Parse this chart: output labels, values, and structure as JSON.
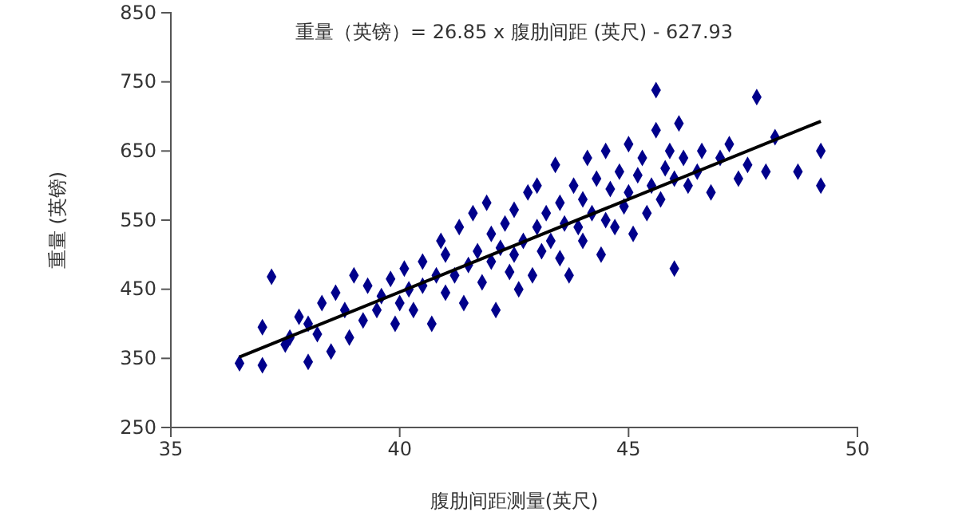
{
  "chart_data": {
    "type": "scatter",
    "title": "重量（英镑）= 26.85 x 腹肋间距 (英尺) - 627.93",
    "xlabel": "腹肋间距测量(英尺)",
    "ylabel": "重量 (英镑)",
    "xlim": [
      35,
      50
    ],
    "xticks": [
      35,
      40,
      45,
      50
    ],
    "ylim": [
      250,
      850
    ],
    "yticks": [
      250,
      350,
      450,
      550,
      650,
      750,
      850
    ],
    "grid": false,
    "series": [
      {
        "color": "#00008b",
        "marker": "diamond",
        "x": [
          36.5,
          37.0,
          37.0,
          37.2,
          37.5,
          37.6,
          37.8,
          38.0,
          38.0,
          38.2,
          38.3,
          38.5,
          38.6,
          38.8,
          38.9,
          39.0,
          39.2,
          39.3,
          39.5,
          39.6,
          39.8,
          39.9,
          40.0,
          40.1,
          40.2,
          40.3,
          40.5,
          40.5,
          40.7,
          40.8,
          40.9,
          41.0,
          41.0,
          41.2,
          41.3,
          41.4,
          41.5,
          41.6,
          41.7,
          41.8,
          41.9,
          42.0,
          42.0,
          42.1,
          42.2,
          42.3,
          42.4,
          42.5,
          42.5,
          42.6,
          42.7,
          42.8,
          42.9,
          43.0,
          43.0,
          43.1,
          43.2,
          43.3,
          43.4,
          43.5,
          43.5,
          43.6,
          43.7,
          43.8,
          43.9,
          44.0,
          44.0,
          44.1,
          44.2,
          44.3,
          44.4,
          44.5,
          44.5,
          44.6,
          44.7,
          44.8,
          44.9,
          45.0,
          45.0,
          45.1,
          45.2,
          45.3,
          45.4,
          45.5,
          45.6,
          45.6,
          45.7,
          45.8,
          45.9,
          46.0,
          46.0,
          46.1,
          46.2,
          46.3,
          46.5,
          46.6,
          46.8,
          47.0,
          47.2,
          47.4,
          47.6,
          47.8,
          48.0,
          48.2,
          48.7,
          49.2,
          49.2
        ],
        "values": [
          343,
          340,
          395,
          468,
          370,
          380,
          410,
          345,
          400,
          385,
          430,
          360,
          445,
          420,
          380,
          470,
          405,
          455,
          420,
          440,
          465,
          400,
          430,
          480,
          450,
          420,
          455,
          490,
          400,
          470,
          520,
          445,
          500,
          470,
          540,
          430,
          485,
          560,
          505,
          460,
          575,
          490,
          530,
          420,
          510,
          545,
          475,
          565,
          500,
          450,
          520,
          590,
          470,
          540,
          600,
          505,
          560,
          520,
          630,
          495,
          575,
          545,
          470,
          600,
          540,
          520,
          580,
          640,
          560,
          610,
          500,
          550,
          650,
          595,
          540,
          620,
          570,
          590,
          660,
          530,
          615,
          640,
          560,
          600,
          738,
          680,
          580,
          625,
          650,
          480,
          610,
          690,
          640,
          600,
          620,
          650,
          590,
          640,
          660,
          610,
          630,
          728,
          620,
          670,
          620,
          650,
          600
        ]
      },
      {
        "type": "line",
        "color": "#000000",
        "line_style": "solid",
        "x": [
          36.5,
          49.2
        ],
        "values": [
          352,
          693
        ]
      }
    ]
  }
}
